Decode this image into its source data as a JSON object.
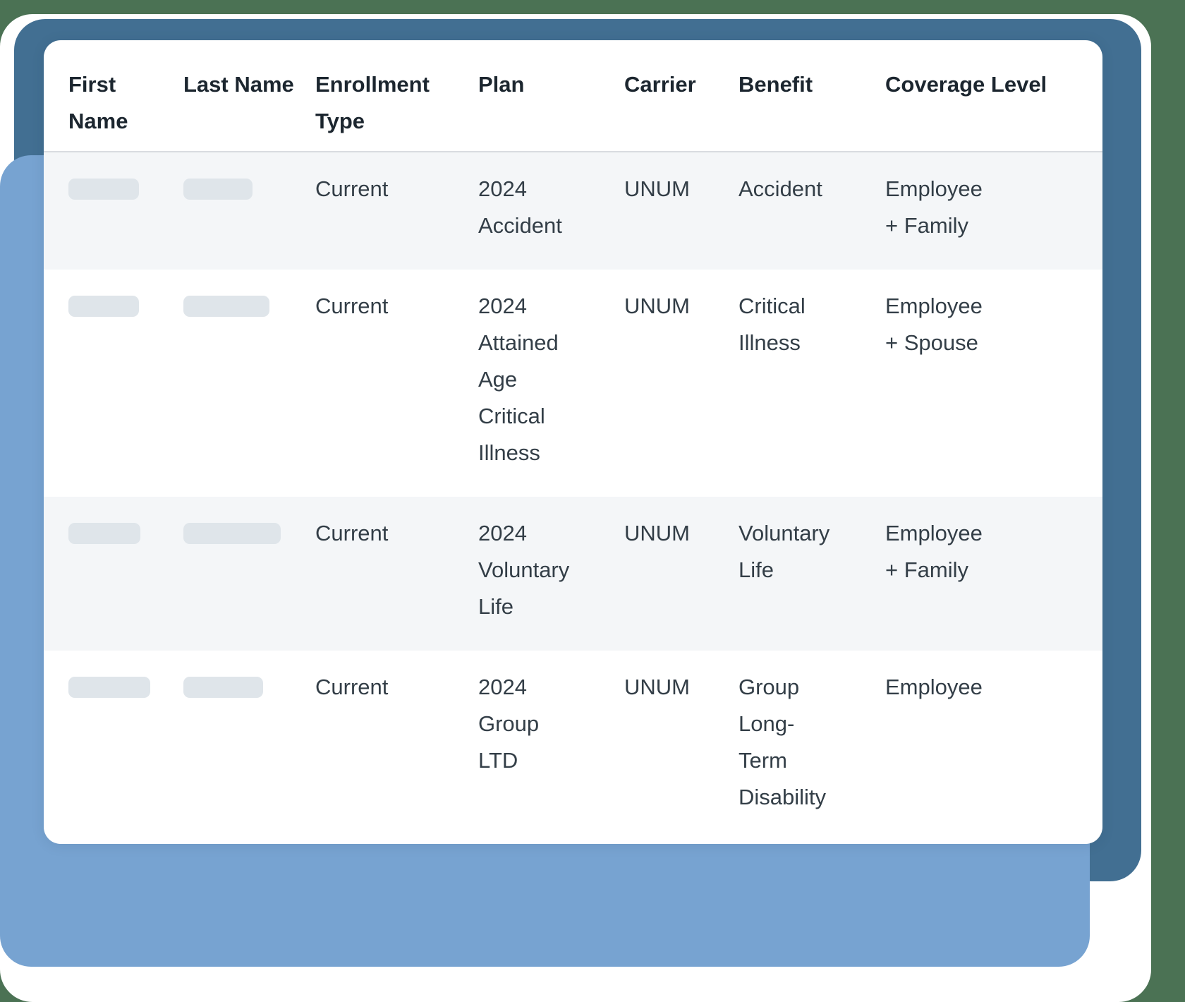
{
  "colors": {
    "page_background": "#4b7254",
    "accent_dark_blue": "#426f92",
    "accent_light_blue": "#77a3d1",
    "card_background": "#ffffff",
    "row_stripe": "#f4f6f8",
    "divider": "#d9dce0",
    "pill": "#dfe5ea",
    "header_text": "#1c262f",
    "body_text": "#333e47"
  },
  "table": {
    "columns": [
      {
        "label": "First Name"
      },
      {
        "label": "Last Name"
      },
      {
        "label": "Enrollment Type"
      },
      {
        "label": "Plan"
      },
      {
        "label": "Carrier"
      },
      {
        "label": "Benefit"
      },
      {
        "label": "Coverage Level"
      }
    ],
    "rows": [
      {
        "first_name": "",
        "last_name": "",
        "enrollment_type": "Current",
        "plan": "2024 Accident",
        "carrier": "UNUM",
        "benefit": "Accident",
        "coverage_level": "Employee + Family"
      },
      {
        "first_name": "",
        "last_name": "",
        "enrollment_type": "Current",
        "plan": "2024 Attained Age Critical Illness",
        "carrier": "UNUM",
        "benefit": "Critical Illness",
        "coverage_level": "Employee + Spouse"
      },
      {
        "first_name": "",
        "last_name": "",
        "enrollment_type": "Current",
        "plan": "2024 Voluntary Life",
        "carrier": "UNUM",
        "benefit": "Voluntary Life",
        "coverage_level": "Employee + Family"
      },
      {
        "first_name": "",
        "last_name": "",
        "enrollment_type": "Current",
        "plan": "2024 Group LTD",
        "carrier": "UNUM",
        "benefit": "Group Long-Term Disability",
        "coverage_level": "Employee"
      }
    ]
  }
}
